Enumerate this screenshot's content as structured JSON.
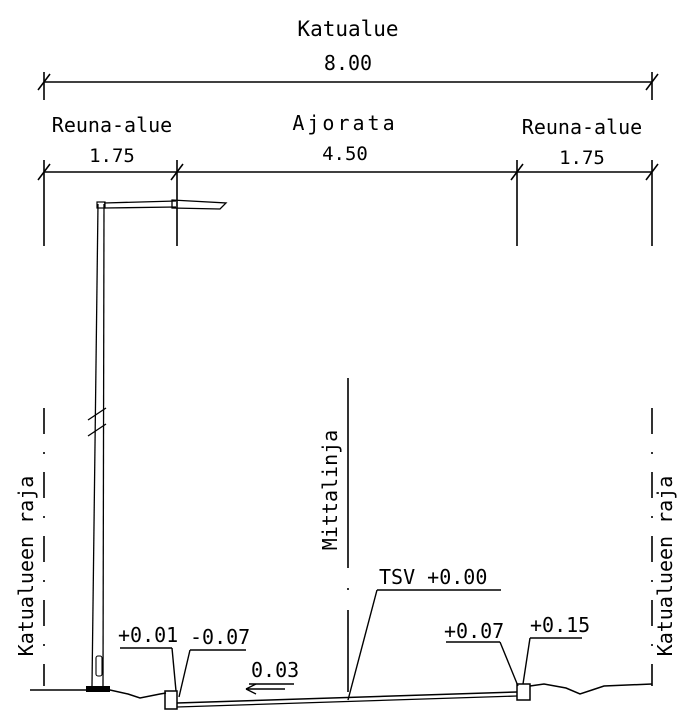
{
  "street_area": {
    "title": "Katualue",
    "width": "8.00"
  },
  "zones": [
    {
      "name": "Reuna-alue",
      "width": "1.75"
    },
    {
      "name": "Ajorata",
      "width": "4.50"
    },
    {
      "name": "Reuna-alue",
      "width": "1.75"
    }
  ],
  "boundary_label": "Katualueen raja",
  "centerline_label": "Mittalinja",
  "elevations": {
    "tsv": "TSV +0.00",
    "left_outer": "+0.01",
    "left_inner": "-0.07",
    "right_inner": "+0.07",
    "right_outer": "+0.15"
  },
  "cross_slope": "0.03"
}
